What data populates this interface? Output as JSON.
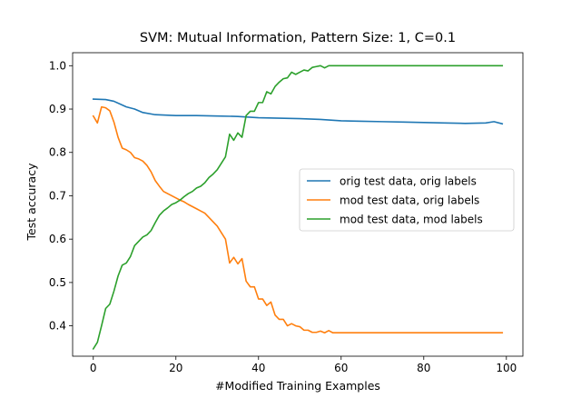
{
  "chart_data": {
    "type": "line",
    "title": "SVM: Mutual Information, Pattern Size: 1, C=0.1",
    "xlabel": "#Modified Training Examples",
    "ylabel": "Test accuracy",
    "xlim": [
      -5,
      104
    ],
    "ylim": [
      0.33,
      1.03
    ],
    "xticks": [
      0,
      20,
      40,
      60,
      80,
      100
    ],
    "yticks": [
      0.4,
      0.5,
      0.6,
      0.7,
      0.8,
      0.9,
      1.0
    ],
    "xtick_labels": [
      "0",
      "20",
      "40",
      "60",
      "80",
      "100"
    ],
    "ytick_labels": [
      "0.4",
      "0.5",
      "0.6",
      "0.7",
      "0.8",
      "0.9",
      "1.0"
    ],
    "legend_position": "center-right",
    "series": [
      {
        "name": "orig test data, orig labels",
        "color": "#1f77b4",
        "points": [
          [
            0,
            0.923
          ],
          [
            3,
            0.922
          ],
          [
            5,
            0.918
          ],
          [
            8,
            0.905
          ],
          [
            10,
            0.9
          ],
          [
            12,
            0.892
          ],
          [
            15,
            0.887
          ],
          [
            20,
            0.885
          ],
          [
            25,
            0.885
          ],
          [
            30,
            0.884
          ],
          [
            35,
            0.883
          ],
          [
            40,
            0.88
          ],
          [
            45,
            0.879
          ],
          [
            50,
            0.878
          ],
          [
            55,
            0.876
          ],
          [
            60,
            0.873
          ],
          [
            65,
            0.872
          ],
          [
            70,
            0.871
          ],
          [
            75,
            0.87
          ],
          [
            80,
            0.869
          ],
          [
            85,
            0.868
          ],
          [
            90,
            0.867
          ],
          [
            95,
            0.868
          ],
          [
            97,
            0.871
          ],
          [
            99,
            0.866
          ]
        ]
      },
      {
        "name": "mod test data, orig labels",
        "color": "#ff7f0e",
        "points": [
          [
            0,
            0.884
          ],
          [
            1,
            0.868
          ],
          [
            2,
            0.905
          ],
          [
            3,
            0.903
          ],
          [
            4,
            0.896
          ],
          [
            5,
            0.87
          ],
          [
            6,
            0.835
          ],
          [
            7,
            0.81
          ],
          [
            8,
            0.806
          ],
          [
            9,
            0.8
          ],
          [
            10,
            0.788
          ],
          [
            11,
            0.785
          ],
          [
            12,
            0.78
          ],
          [
            13,
            0.77
          ],
          [
            14,
            0.755
          ],
          [
            15,
            0.735
          ],
          [
            16,
            0.722
          ],
          [
            17,
            0.71
          ],
          [
            18,
            0.705
          ],
          [
            19,
            0.7
          ],
          [
            20,
            0.695
          ],
          [
            21,
            0.69
          ],
          [
            22,
            0.686
          ],
          [
            23,
            0.68
          ],
          [
            24,
            0.675
          ],
          [
            25,
            0.67
          ],
          [
            26,
            0.665
          ],
          [
            27,
            0.66
          ],
          [
            28,
            0.65
          ],
          [
            29,
            0.64
          ],
          [
            30,
            0.63
          ],
          [
            31,
            0.615
          ],
          [
            32,
            0.6
          ],
          [
            33,
            0.545
          ],
          [
            34,
            0.558
          ],
          [
            35,
            0.543
          ],
          [
            36,
            0.555
          ],
          [
            37,
            0.503
          ],
          [
            38,
            0.49
          ],
          [
            39,
            0.49
          ],
          [
            40,
            0.462
          ],
          [
            41,
            0.462
          ],
          [
            42,
            0.447
          ],
          [
            43,
            0.455
          ],
          [
            44,
            0.425
          ],
          [
            45,
            0.415
          ],
          [
            46,
            0.415
          ],
          [
            47,
            0.4
          ],
          [
            48,
            0.405
          ],
          [
            49,
            0.4
          ],
          [
            50,
            0.398
          ],
          [
            51,
            0.39
          ],
          [
            52,
            0.39
          ],
          [
            53,
            0.385
          ],
          [
            54,
            0.385
          ],
          [
            55,
            0.388
          ],
          [
            56,
            0.384
          ],
          [
            57,
            0.389
          ],
          [
            58,
            0.384
          ],
          [
            60,
            0.384
          ],
          [
            70,
            0.384
          ],
          [
            80,
            0.384
          ],
          [
            90,
            0.384
          ],
          [
            99,
            0.384
          ]
        ]
      },
      {
        "name": "mod test data, mod labels",
        "color": "#2ca02c",
        "points": [
          [
            0,
            0.347
          ],
          [
            1,
            0.362
          ],
          [
            2,
            0.4
          ],
          [
            3,
            0.44
          ],
          [
            4,
            0.45
          ],
          [
            5,
            0.48
          ],
          [
            6,
            0.515
          ],
          [
            7,
            0.54
          ],
          [
            8,
            0.545
          ],
          [
            9,
            0.56
          ],
          [
            10,
            0.585
          ],
          [
            11,
            0.595
          ],
          [
            12,
            0.605
          ],
          [
            13,
            0.61
          ],
          [
            14,
            0.62
          ],
          [
            15,
            0.638
          ],
          [
            16,
            0.655
          ],
          [
            17,
            0.665
          ],
          [
            18,
            0.672
          ],
          [
            19,
            0.68
          ],
          [
            20,
            0.684
          ],
          [
            21,
            0.69
          ],
          [
            22,
            0.698
          ],
          [
            23,
            0.705
          ],
          [
            24,
            0.71
          ],
          [
            25,
            0.718
          ],
          [
            26,
            0.722
          ],
          [
            27,
            0.73
          ],
          [
            28,
            0.742
          ],
          [
            29,
            0.75
          ],
          [
            30,
            0.76
          ],
          [
            31,
            0.775
          ],
          [
            32,
            0.79
          ],
          [
            33,
            0.842
          ],
          [
            34,
            0.828
          ],
          [
            35,
            0.845
          ],
          [
            36,
            0.835
          ],
          [
            37,
            0.885
          ],
          [
            38,
            0.895
          ],
          [
            39,
            0.895
          ],
          [
            40,
            0.915
          ],
          [
            41,
            0.915
          ],
          [
            42,
            0.94
          ],
          [
            43,
            0.935
          ],
          [
            44,
            0.952
          ],
          [
            45,
            0.962
          ],
          [
            46,
            0.97
          ],
          [
            47,
            0.972
          ],
          [
            48,
            0.985
          ],
          [
            49,
            0.98
          ],
          [
            50,
            0.985
          ],
          [
            51,
            0.99
          ],
          [
            52,
            0.988
          ],
          [
            53,
            0.996
          ],
          [
            54,
            0.998
          ],
          [
            55,
            1.0
          ],
          [
            56,
            0.995
          ],
          [
            57,
            1.0
          ],
          [
            58,
            1.0
          ],
          [
            60,
            1.0
          ],
          [
            70,
            1.0
          ],
          [
            80,
            1.0
          ],
          [
            90,
            1.0
          ],
          [
            99,
            1.0
          ]
        ]
      }
    ]
  }
}
